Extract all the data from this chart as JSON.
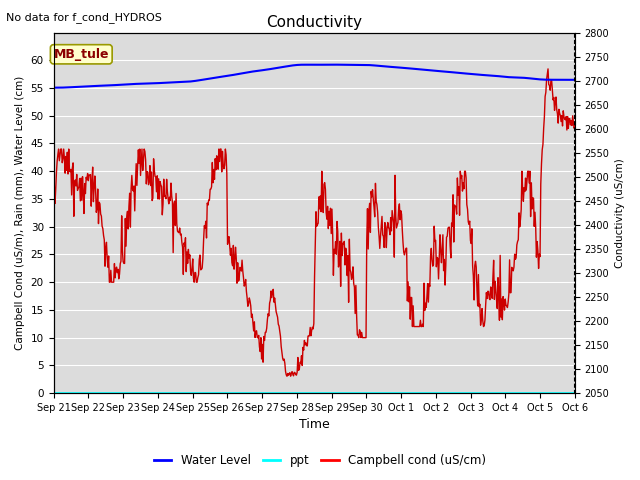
{
  "title": "Conductivity",
  "top_left_text": "No data for f_cond_HYDROS",
  "annotation_box": "MB_tule",
  "xlabel": "Time",
  "ylabel_left": "Campbell Cond (uS/m), Rain (mm), Water Level (cm)",
  "ylabel_right": "Conductivity (uS/cm)",
  "ylim_left": [
    0,
    65
  ],
  "ylim_right": [
    2050,
    2800
  ],
  "yticks_left": [
    0,
    5,
    10,
    15,
    20,
    25,
    30,
    35,
    40,
    45,
    50,
    55,
    60
  ],
  "yticks_right": [
    2050,
    2100,
    2150,
    2200,
    2250,
    2300,
    2350,
    2400,
    2450,
    2500,
    2550,
    2600,
    2650,
    2700,
    2750,
    2800
  ],
  "plot_bg_color": "#dcdcdc",
  "grid_color": "#ffffff",
  "water_level_color": "#0000ff",
  "ppt_color": "#00ffff",
  "campbell_color": "#cc0000",
  "xtick_labels": [
    "Sep 21",
    "Sep 22",
    "Sep 23",
    "Sep 24",
    "Sep 25",
    "Sep 26",
    "Sep 27",
    "Sep 28",
    "Sep 29",
    "Sep 30",
    "Oct 1",
    "Oct 2",
    "Oct 3",
    "Oct 4",
    "Oct 5",
    "Oct 6"
  ],
  "n_days": 15
}
